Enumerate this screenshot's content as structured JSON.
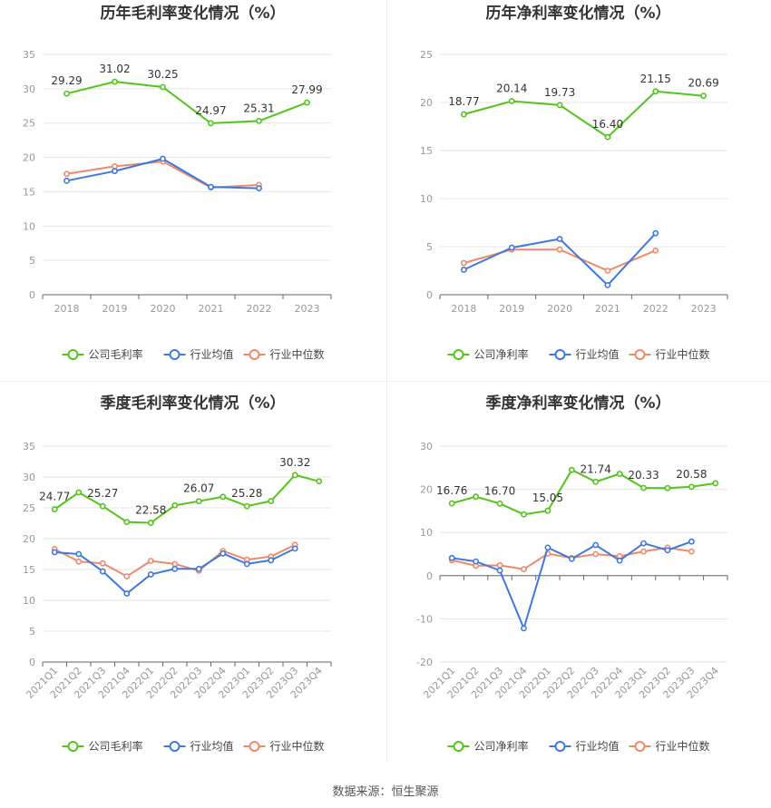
{
  "colors": {
    "company": "#52c41a",
    "avg": "#3f78de",
    "median": "#f0896a",
    "grid": "#e6e6e6",
    "axis": "#999999",
    "text": "#333333"
  },
  "legend": {
    "company_gross": "公司毛利率",
    "company_net": "公司净利率",
    "avg": "行业均值",
    "median": "行业中位数"
  },
  "footer": {
    "source": "数据来源：恒生聚源"
  },
  "chart_data": [
    {
      "type": "line",
      "title": "历年毛利率变化情况（%）",
      "categories": [
        "2018",
        "2019",
        "2020",
        "2021",
        "2022",
        "2023"
      ],
      "ylim": [
        0,
        35
      ],
      "yticks": [
        0,
        5,
        10,
        15,
        20,
        25,
        30,
        35
      ],
      "series": [
        {
          "name": "公司毛利率",
          "values": [
            29.29,
            31.02,
            30.25,
            24.97,
            25.31,
            27.99
          ],
          "labels": [
            "29.29",
            "31.02",
            "30.25",
            "24.97",
            "25.31",
            "27.99"
          ]
        },
        {
          "name": "行业均值",
          "values": [
            16.6,
            18.0,
            19.8,
            15.7,
            15.5,
            null
          ]
        },
        {
          "name": "行业中位数",
          "values": [
            17.6,
            18.7,
            19.4,
            15.6,
            16.0,
            null
          ]
        }
      ]
    },
    {
      "type": "line",
      "title": "历年净利率变化情况（%）",
      "categories": [
        "2018",
        "2019",
        "2020",
        "2021",
        "2022",
        "2023"
      ],
      "ylim": [
        0,
        25
      ],
      "yticks": [
        0,
        5,
        10,
        15,
        20,
        25
      ],
      "series": [
        {
          "name": "公司净利率",
          "values": [
            18.77,
            20.14,
            19.73,
            16.4,
            21.15,
            20.69
          ],
          "labels": [
            "18.77",
            "20.14",
            "19.73",
            "16.40",
            "21.15",
            "20.69"
          ]
        },
        {
          "name": "行业均值",
          "values": [
            2.6,
            4.9,
            5.8,
            1.0,
            6.4,
            null
          ]
        },
        {
          "name": "行业中位数",
          "values": [
            3.3,
            4.7,
            4.7,
            2.5,
            4.6,
            null
          ]
        }
      ]
    },
    {
      "type": "line",
      "title": "季度毛利率变化情况（%）",
      "categories": [
        "2021Q1",
        "2021Q2",
        "2021Q3",
        "2021Q4",
        "2022Q1",
        "2022Q2",
        "2022Q3",
        "2022Q4",
        "2023Q1",
        "2023Q2",
        "2023Q3",
        "2023Q4"
      ],
      "ylim": [
        0,
        35
      ],
      "yticks": [
        0,
        5,
        10,
        15,
        20,
        25,
        30,
        35
      ],
      "series": [
        {
          "name": "公司毛利率",
          "values": [
            24.77,
            27.5,
            25.27,
            22.7,
            22.58,
            25.4,
            26.07,
            26.8,
            25.28,
            26.1,
            30.32,
            29.3
          ],
          "labels": [
            "24.77",
            "",
            "25.27",
            "",
            "22.58",
            "",
            "26.07",
            "",
            "25.28",
            "",
            "30.32",
            ""
          ]
        },
        {
          "name": "行业均值",
          "values": [
            17.8,
            17.5,
            14.7,
            11.1,
            14.2,
            15.1,
            15.1,
            17.6,
            15.9,
            16.5,
            18.4,
            null
          ]
        },
        {
          "name": "行业中位数",
          "values": [
            18.3,
            16.3,
            16.0,
            13.9,
            16.4,
            15.9,
            14.8,
            18.0,
            16.6,
            17.1,
            19.0,
            null
          ]
        }
      ]
    },
    {
      "type": "line",
      "title": "季度净利率变化情况（%）",
      "categories": [
        "2021Q1",
        "2021Q2",
        "2021Q3",
        "2021Q4",
        "2022Q1",
        "2022Q2",
        "2022Q3",
        "2022Q4",
        "2023Q1",
        "2023Q2",
        "2023Q3",
        "2023Q4"
      ],
      "ylim": [
        -20,
        30
      ],
      "yticks": [
        -20,
        -10,
        0,
        10,
        20,
        30
      ],
      "series": [
        {
          "name": "公司净利率",
          "values": [
            16.76,
            18.3,
            16.7,
            14.2,
            15.05,
            24.5,
            21.74,
            23.6,
            20.33,
            20.3,
            20.58,
            21.4
          ],
          "labels": [
            "16.76",
            "",
            "16.70",
            "",
            "15.05",
            "",
            "21.74",
            "",
            "20.33",
            "",
            "20.58",
            ""
          ]
        },
        {
          "name": "行业均值",
          "values": [
            4.1,
            3.3,
            1.2,
            -12.2,
            6.5,
            3.9,
            7.1,
            3.5,
            7.5,
            5.9,
            7.9,
            null
          ]
        },
        {
          "name": "行业中位数",
          "values": [
            3.6,
            2.3,
            2.4,
            1.5,
            5.1,
            4.1,
            5.0,
            4.5,
            5.6,
            6.5,
            5.6,
            null
          ]
        }
      ]
    }
  ]
}
